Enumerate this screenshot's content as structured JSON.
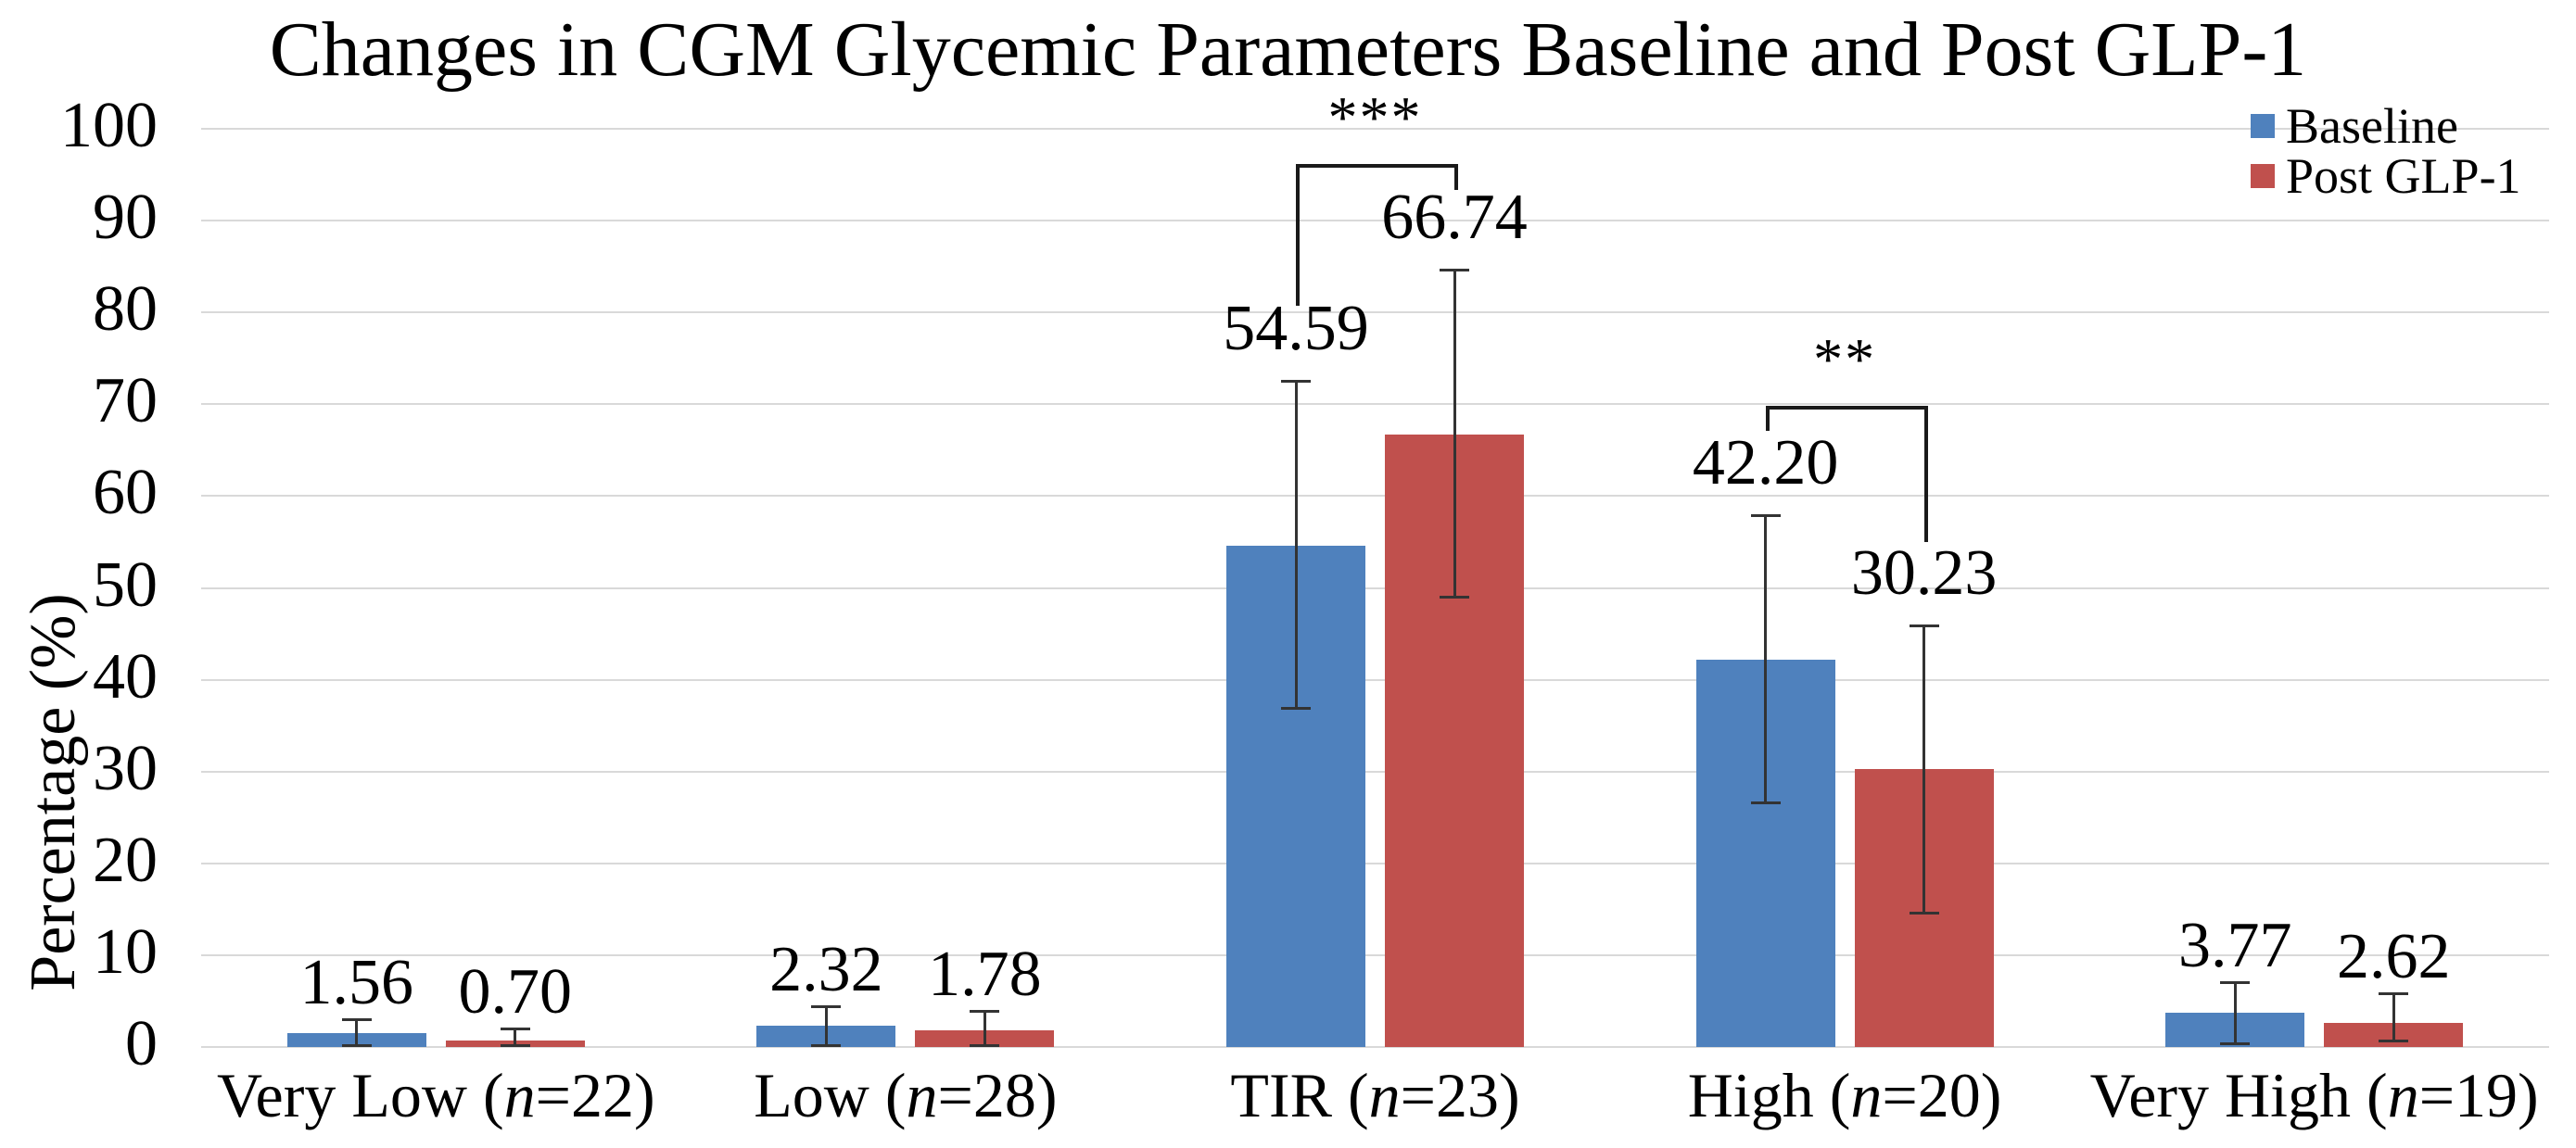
{
  "chart_data": {
    "type": "bar",
    "title": "Changes in CGM Glycemic Parameters Baseline and Post GLP-1",
    "xlabel": "",
    "ylabel": "Percentage (%)",
    "ylim": [
      0,
      100
    ],
    "ytick_interval": 10,
    "grid": true,
    "legend_position": "top-right",
    "categories": [
      "Very Low (n=22)",
      "Low (n=28)",
      "TIR (n=23)",
      "High (n=20)",
      "Very High (n=19)"
    ],
    "series": [
      {
        "name": "Baseline",
        "color": "#4F81BD",
        "values": [
          1.56,
          2.32,
          54.59,
          42.2,
          3.77
        ],
        "errors_up": [
          1.5,
          2.1,
          18.0,
          15.7,
          3.3
        ],
        "errors_down": [
          1.5,
          2.2,
          17.8,
          15.7,
          3.5
        ]
      },
      {
        "name": "Post GLP-1",
        "color": "#C0504D",
        "values": [
          0.7,
          1.78,
          66.74,
          30.23,
          2.62
        ],
        "errors_up": [
          1.3,
          2.2,
          17.9,
          15.7,
          3.2
        ],
        "errors_down": [
          0.7,
          1.8,
          17.8,
          15.7,
          2.0
        ]
      }
    ],
    "data_labels": [
      [
        "1.56",
        "2.32",
        "54.59",
        "42.20",
        "3.77"
      ],
      [
        "0.70",
        "1.78",
        "66.74",
        "30.23",
        "2.62"
      ]
    ],
    "annotations": [
      {
        "type": "significance-bracket",
        "label": "***",
        "category": "TIR (n=23)",
        "category_index": 2,
        "bar_pct": 96.2,
        "left_drop_pct": 80.7,
        "right_drop_pct": 93.3
      },
      {
        "type": "significance-bracket",
        "label": "**",
        "category": "High (n=20)",
        "category_index": 3,
        "bar_pct": 69.8,
        "left_drop_pct": 67.1,
        "right_drop_pct": 55.0
      }
    ],
    "colors": {
      "baseline": "#4F81BD",
      "post_glp1": "#C0504D",
      "gridline": "#D9D9D9",
      "error_bar": "#333333",
      "bracket": "#1a1a1a",
      "text": "#000000",
      "background": "#ffffff"
    }
  }
}
